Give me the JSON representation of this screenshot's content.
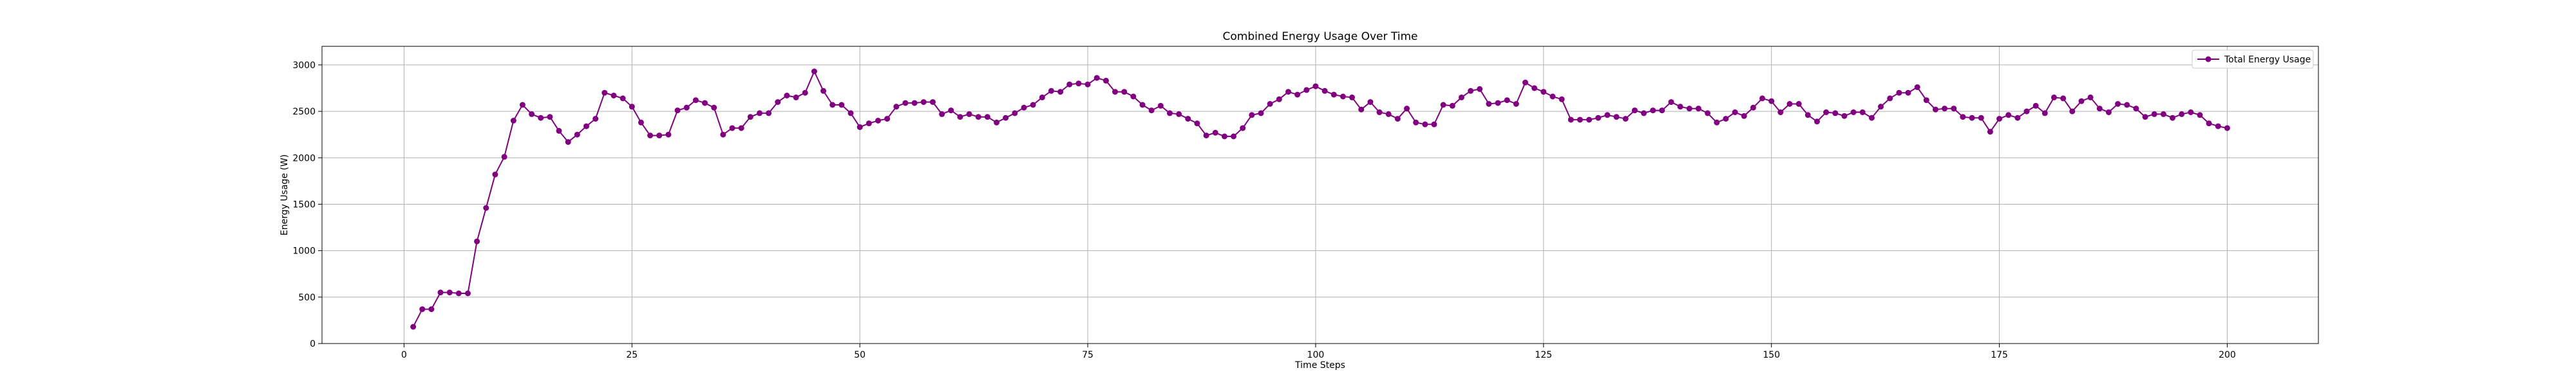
{
  "chart_data": {
    "type": "line",
    "title": "Combined Energy Usage Over Time",
    "xlabel": "Time Steps",
    "ylabel": "Energy Usage (W)",
    "xlim": [
      -9,
      210
    ],
    "ylim": [
      0,
      3200
    ],
    "xticks": [
      0,
      25,
      50,
      75,
      100,
      125,
      150,
      175,
      200
    ],
    "yticks": [
      0,
      500,
      1000,
      1500,
      2000,
      2500,
      3000
    ],
    "grid": true,
    "legend_position": "top-right",
    "colors": {
      "series": "#800080",
      "grid": "#b0b0b0",
      "axis": "#000000"
    },
    "series": [
      {
        "name": "Total Energy Usage",
        "marker": "circle",
        "x": [
          1,
          2,
          3,
          4,
          5,
          6,
          7,
          8,
          9,
          10,
          11,
          12,
          13,
          14,
          15,
          16,
          17,
          18,
          19,
          20,
          21,
          22,
          23,
          24,
          25,
          26,
          27,
          28,
          29,
          30,
          31,
          32,
          33,
          34,
          35,
          36,
          37,
          38,
          39,
          40,
          41,
          42,
          43,
          44,
          45,
          46,
          47,
          48,
          49,
          50,
          51,
          52,
          53,
          54,
          55,
          56,
          57,
          58,
          59,
          60,
          61,
          62,
          63,
          64,
          65,
          66,
          67,
          68,
          69,
          70,
          71,
          72,
          73,
          74,
          75,
          76,
          77,
          78,
          79,
          80,
          81,
          82,
          83,
          84,
          85,
          86,
          87,
          88,
          89,
          90,
          91,
          92,
          93,
          94,
          95,
          96,
          97,
          98,
          99,
          100,
          101,
          102,
          103,
          104,
          105,
          106,
          107,
          108,
          109,
          110,
          111,
          112,
          113,
          114,
          115,
          116,
          117,
          118,
          119,
          120,
          121,
          122,
          123,
          124,
          125,
          126,
          127,
          128,
          129,
          130,
          131,
          132,
          133,
          134,
          135,
          136,
          137,
          138,
          139,
          140,
          141,
          142,
          143,
          144,
          145,
          146,
          147,
          148,
          149,
          150,
          151,
          152,
          153,
          154,
          155,
          156,
          157,
          158,
          159,
          160,
          161,
          162,
          163,
          164,
          165,
          166,
          167,
          168,
          169,
          170,
          171,
          172,
          173,
          174,
          175,
          176,
          177,
          178,
          179,
          180,
          181,
          182,
          183,
          184,
          185,
          186,
          187,
          188,
          189,
          190,
          191,
          192,
          193,
          194,
          195,
          196,
          197,
          198,
          199,
          200
        ],
        "values": [
          180,
          370,
          370,
          550,
          550,
          540,
          540,
          1100,
          1460,
          1820,
          2010,
          2400,
          2570,
          2470,
          2430,
          2440,
          2290,
          2170,
          2250,
          2340,
          2420,
          2700,
          2670,
          2640,
          2550,
          2380,
          2240,
          2240,
          2250,
          2510,
          2540,
          2620,
          2590,
          2540,
          2250,
          2320,
          2320,
          2440,
          2480,
          2480,
          2600,
          2670,
          2650,
          2700,
          2930,
          2720,
          2570,
          2570,
          2480,
          2330,
          2370,
          2400,
          2420,
          2550,
          2590,
          2590,
          2600,
          2600,
          2470,
          2510,
          2440,
          2470,
          2440,
          2440,
          2380,
          2430,
          2480,
          2540,
          2570,
          2650,
          2720,
          2710,
          2790,
          2800,
          2790,
          2860,
          2830,
          2710,
          2710,
          2660,
          2570,
          2510,
          2560,
          2480,
          2470,
          2420,
          2370,
          2240,
          2270,
          2230,
          2230,
          2320,
          2460,
          2480,
          2580,
          2630,
          2710,
          2680,
          2730,
          2770,
          2720,
          2680,
          2660,
          2650,
          2520,
          2600,
          2490,
          2470,
          2420,
          2530,
          2380,
          2360,
          2360,
          2570,
          2560,
          2650,
          2720,
          2740,
          2580,
          2590,
          2620,
          2580,
          2810,
          2750,
          2710,
          2660,
          2630,
          2410,
          2410,
          2410,
          2430,
          2460,
          2440,
          2420,
          2510,
          2480,
          2510,
          2510,
          2600,
          2550,
          2530,
          2530,
          2480,
          2380,
          2420,
          2490,
          2450,
          2540,
          2640,
          2610,
          2490,
          2580,
          2580,
          2460,
          2390,
          2490,
          2480,
          2450,
          2490,
          2490,
          2430,
          2550,
          2640,
          2700,
          2700,
          2760,
          2620,
          2520,
          2530,
          2530,
          2440,
          2430,
          2430,
          2280,
          2420,
          2460,
          2430,
          2500,
          2560,
          2480,
          2650,
          2640,
          2500,
          2610,
          2650,
          2530,
          2490,
          2580,
          2570,
          2530,
          2440,
          2470,
          2470,
          2430,
          2470,
          2490,
          2460,
          2370,
          2340,
          2320
        ]
      }
    ]
  }
}
